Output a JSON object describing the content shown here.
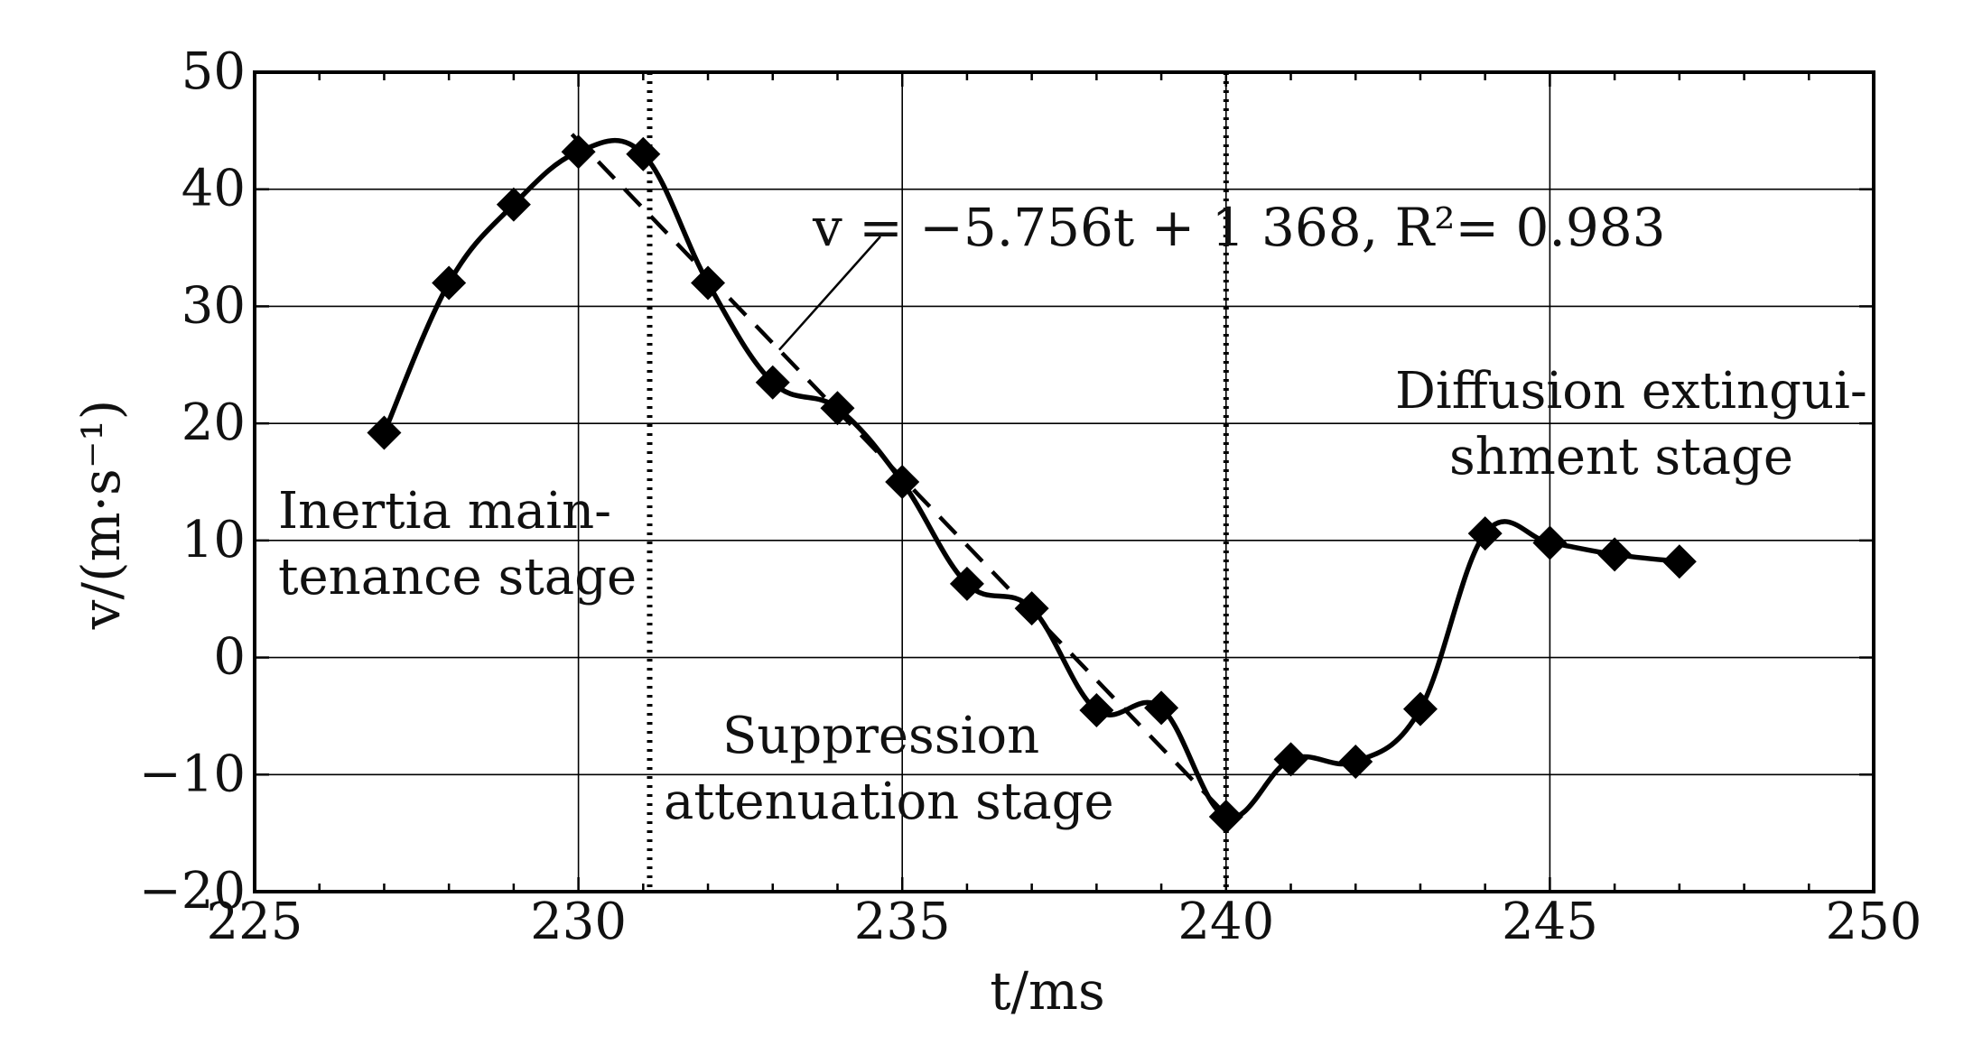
{
  "chart_data": {
    "type": "line",
    "xlabel": "t/ms",
    "ylabel": "v/(m·s⁻¹)",
    "xlim": [
      225,
      250
    ],
    "ylim": [
      -20,
      50
    ],
    "xticks": [
      225,
      230,
      235,
      240,
      245,
      250
    ],
    "yticks": [
      -20,
      -10,
      0,
      10,
      20,
      30,
      40,
      50
    ],
    "x_minor_step": 1,
    "grid": true,
    "series": [
      {
        "marker": "diamond",
        "color": "#000000",
        "x": [
          227,
          228,
          229,
          230,
          231,
          232,
          233,
          234,
          235,
          236,
          237,
          238,
          239,
          240,
          241,
          242,
          243,
          244,
          245,
          246,
          247
        ],
        "y": [
          19.2,
          32.0,
          38.7,
          43.2,
          43.0,
          32.0,
          23.5,
          21.3,
          15.0,
          6.3,
          4.2,
          -4.5,
          -4.3,
          -13.6,
          -8.7,
          -8.9,
          -4.4,
          10.6,
          9.8,
          8.8,
          8.2
        ]
      }
    ],
    "fit_line": {
      "x_range": [
        229.9,
        240.0
      ],
      "slope": -5.756,
      "intercept": 1368,
      "style": "dashed"
    },
    "stage_dividers": [
      231.1,
      240.0
    ],
    "annotations": {
      "equation": "v = −5.756t + 1 368, R²= 0.983",
      "stage1_line1": "Inertia main-",
      "stage1_line2": "tenance stage",
      "stage2_line1": "Suppression",
      "stage2_line2": "attenuation stage",
      "stage3_line1": "Diffusion extingui-",
      "stage3_line2": "shment stage"
    }
  }
}
